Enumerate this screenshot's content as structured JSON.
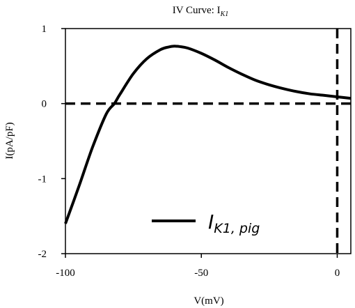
{
  "chart_data": {
    "type": "line",
    "title_main": "IV Curve: I",
    "title_sub": "K1",
    "xlabel": "V(mV)",
    "ylabel": "I(pA/pF)",
    "xlim": [
      -100,
      5
    ],
    "ylim": [
      -2,
      1
    ],
    "x_ticks": [
      -100,
      -50,
      0
    ],
    "x_tick_labels": [
      "-100",
      "-50",
      "0"
    ],
    "y_ticks": [
      -2,
      -1,
      0,
      1
    ],
    "y_tick_labels": [
      "-2",
      "-1",
      "0",
      "1"
    ],
    "grid": false,
    "legend": {
      "placement": "bottom-center",
      "label_main": "I",
      "label_sub": "K1, pig"
    },
    "series": [
      {
        "color": "#000000",
        "x": [
          -100,
          -95,
          -90,
          -85,
          -82,
          -80,
          -75,
          -70,
          -65,
          -62,
          -60,
          -58,
          -55,
          -50,
          -45,
          -40,
          -35,
          -30,
          -25,
          -20,
          -15,
          -10,
          -5,
          0,
          5
        ],
        "y": [
          -1.6,
          -1.1,
          -0.58,
          -0.14,
          0.0,
          0.12,
          0.4,
          0.6,
          0.72,
          0.755,
          0.765,
          0.76,
          0.74,
          0.67,
          0.58,
          0.48,
          0.39,
          0.31,
          0.25,
          0.2,
          0.16,
          0.13,
          0.11,
          0.09,
          0.07
        ]
      }
    ],
    "reference_lines": [
      {
        "orientation": "horizontal",
        "value": 0,
        "style": "dashed",
        "color": "#000000"
      },
      {
        "orientation": "vertical",
        "value": 0,
        "style": "dashed",
        "color": "#000000"
      }
    ]
  }
}
